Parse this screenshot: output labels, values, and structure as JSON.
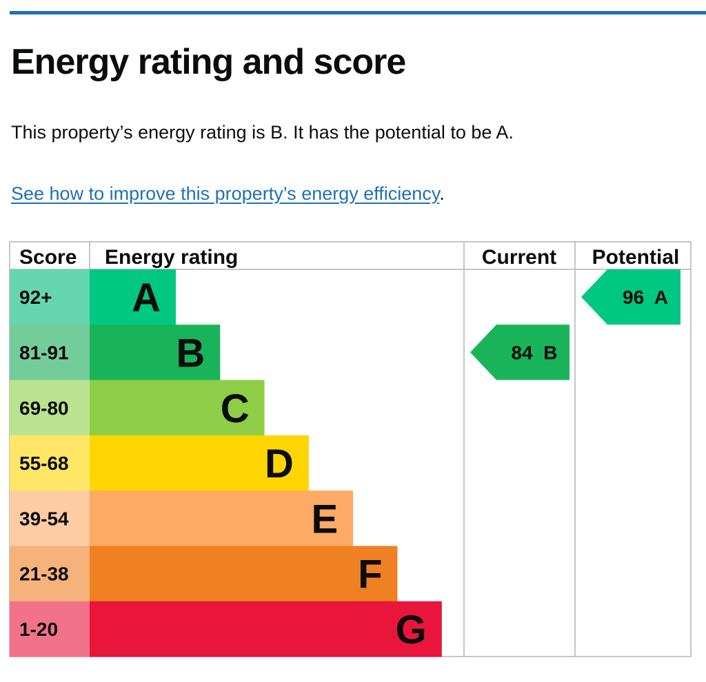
{
  "page": {
    "title": "Energy rating and score",
    "summary": "This property’s energy rating is B. It has the potential to be A.",
    "improve_link": "See how to improve this property’s energy efficiency",
    "improve_suffix": "."
  },
  "chart_data": {
    "type": "table",
    "headers": {
      "score": "Score",
      "rating": "Energy rating",
      "current": "Current",
      "potential": "Potential"
    },
    "bands": [
      {
        "score": "92+",
        "letter": "A",
        "color": "#00c781",
        "score_bg": "#66d6b0"
      },
      {
        "score": "81-91",
        "letter": "B",
        "color": "#19b459",
        "score_bg": "#75cc9b"
      },
      {
        "score": "69-80",
        "letter": "C",
        "color": "#8dce46",
        "score_bg": "#bbe290"
      },
      {
        "score": "55-68",
        "letter": "D",
        "color": "#ffd500",
        "score_bg": "#ffe666"
      },
      {
        "score": "39-54",
        "letter": "E",
        "color": "#fcaa65",
        "score_bg": "#fdcca3"
      },
      {
        "score": "21-38",
        "letter": "F",
        "color": "#ef8023",
        "score_bg": "#f5b37b"
      },
      {
        "score": "1-20",
        "letter": "G",
        "color": "#e9153b",
        "score_bg": "#f27389"
      }
    ],
    "current": {
      "score": 84,
      "letter": "B",
      "label": "84  B"
    },
    "potential": {
      "score": 96,
      "letter": "A",
      "label": "96  A"
    }
  }
}
